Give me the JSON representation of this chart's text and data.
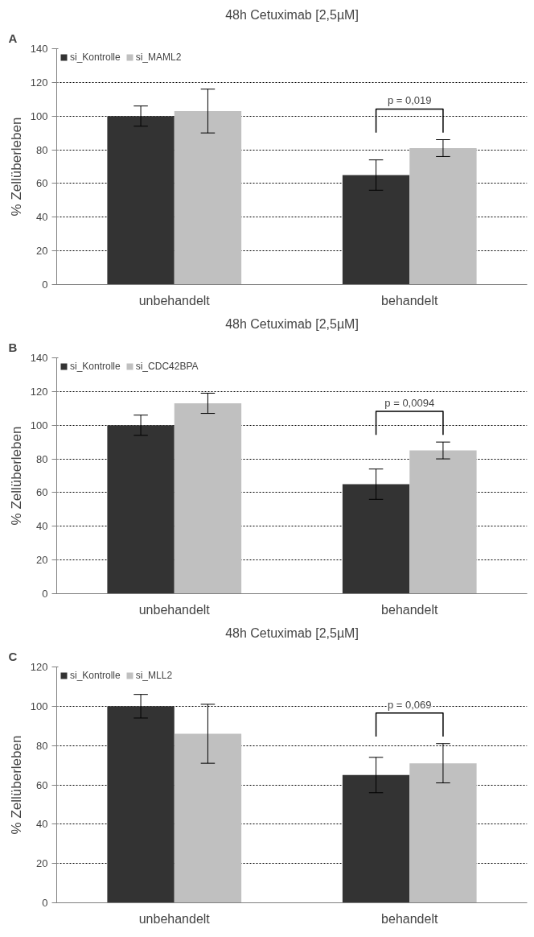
{
  "chart_data": [
    {
      "type": "bar",
      "title": "48h Cetuximab [2,5µM]",
      "ylabel": "% Zellüberleben",
      "categories": [
        "unbehandelt",
        "behandelt"
      ],
      "series": [
        {
          "name": "si_Kontrolle",
          "color": "#333333",
          "values": [
            100,
            65
          ],
          "errors": [
            6,
            9
          ]
        },
        {
          "name": "si_MAML2",
          "color": "#c0c0c0",
          "values": [
            103,
            81
          ],
          "errors": [
            13,
            5
          ]
        }
      ],
      "ylim": [
        0,
        140
      ],
      "yticks": [
        0,
        20,
        40,
        60,
        80,
        100,
        120,
        140
      ],
      "grid": "y",
      "legend": "top left",
      "annotations": [
        "A",
        "p = 0,019"
      ]
    },
    {
      "type": "bar",
      "title": "48h Cetuximab [2,5µM]",
      "ylabel": "% Zellüberleben",
      "categories": [
        "unbehandelt",
        "behandelt"
      ],
      "series": [
        {
          "name": "si_Kontrolle",
          "color": "#333333",
          "values": [
            100,
            65
          ],
          "errors": [
            6,
            9
          ]
        },
        {
          "name": "si_CDC42BPA",
          "color": "#c0c0c0",
          "values": [
            113,
            85
          ],
          "errors": [
            6,
            5
          ]
        }
      ],
      "ylim": [
        0,
        140
      ],
      "yticks": [
        0,
        20,
        40,
        60,
        80,
        100,
        120,
        140
      ],
      "grid": "y",
      "legend": "top left",
      "annotations": [
        "B",
        "p = 0,0094"
      ]
    },
    {
      "type": "bar",
      "title": "48h Cetuximab [2,5µM]",
      "ylabel": "% Zellüberleben",
      "categories": [
        "unbehandelt",
        "behandelt"
      ],
      "series": [
        {
          "name": "si_Kontrolle",
          "color": "#333333",
          "values": [
            100,
            65
          ],
          "errors": [
            6,
            9
          ]
        },
        {
          "name": "si_MLL2",
          "color": "#c0c0c0",
          "values": [
            86,
            71
          ],
          "errors": [
            15,
            10
          ]
        }
      ],
      "ylim": [
        0,
        120
      ],
      "yticks": [
        0,
        20,
        40,
        60,
        80,
        100,
        120
      ],
      "grid": "y",
      "legend": "top left",
      "annotations": [
        "C",
        "p = 0,069"
      ]
    }
  ]
}
